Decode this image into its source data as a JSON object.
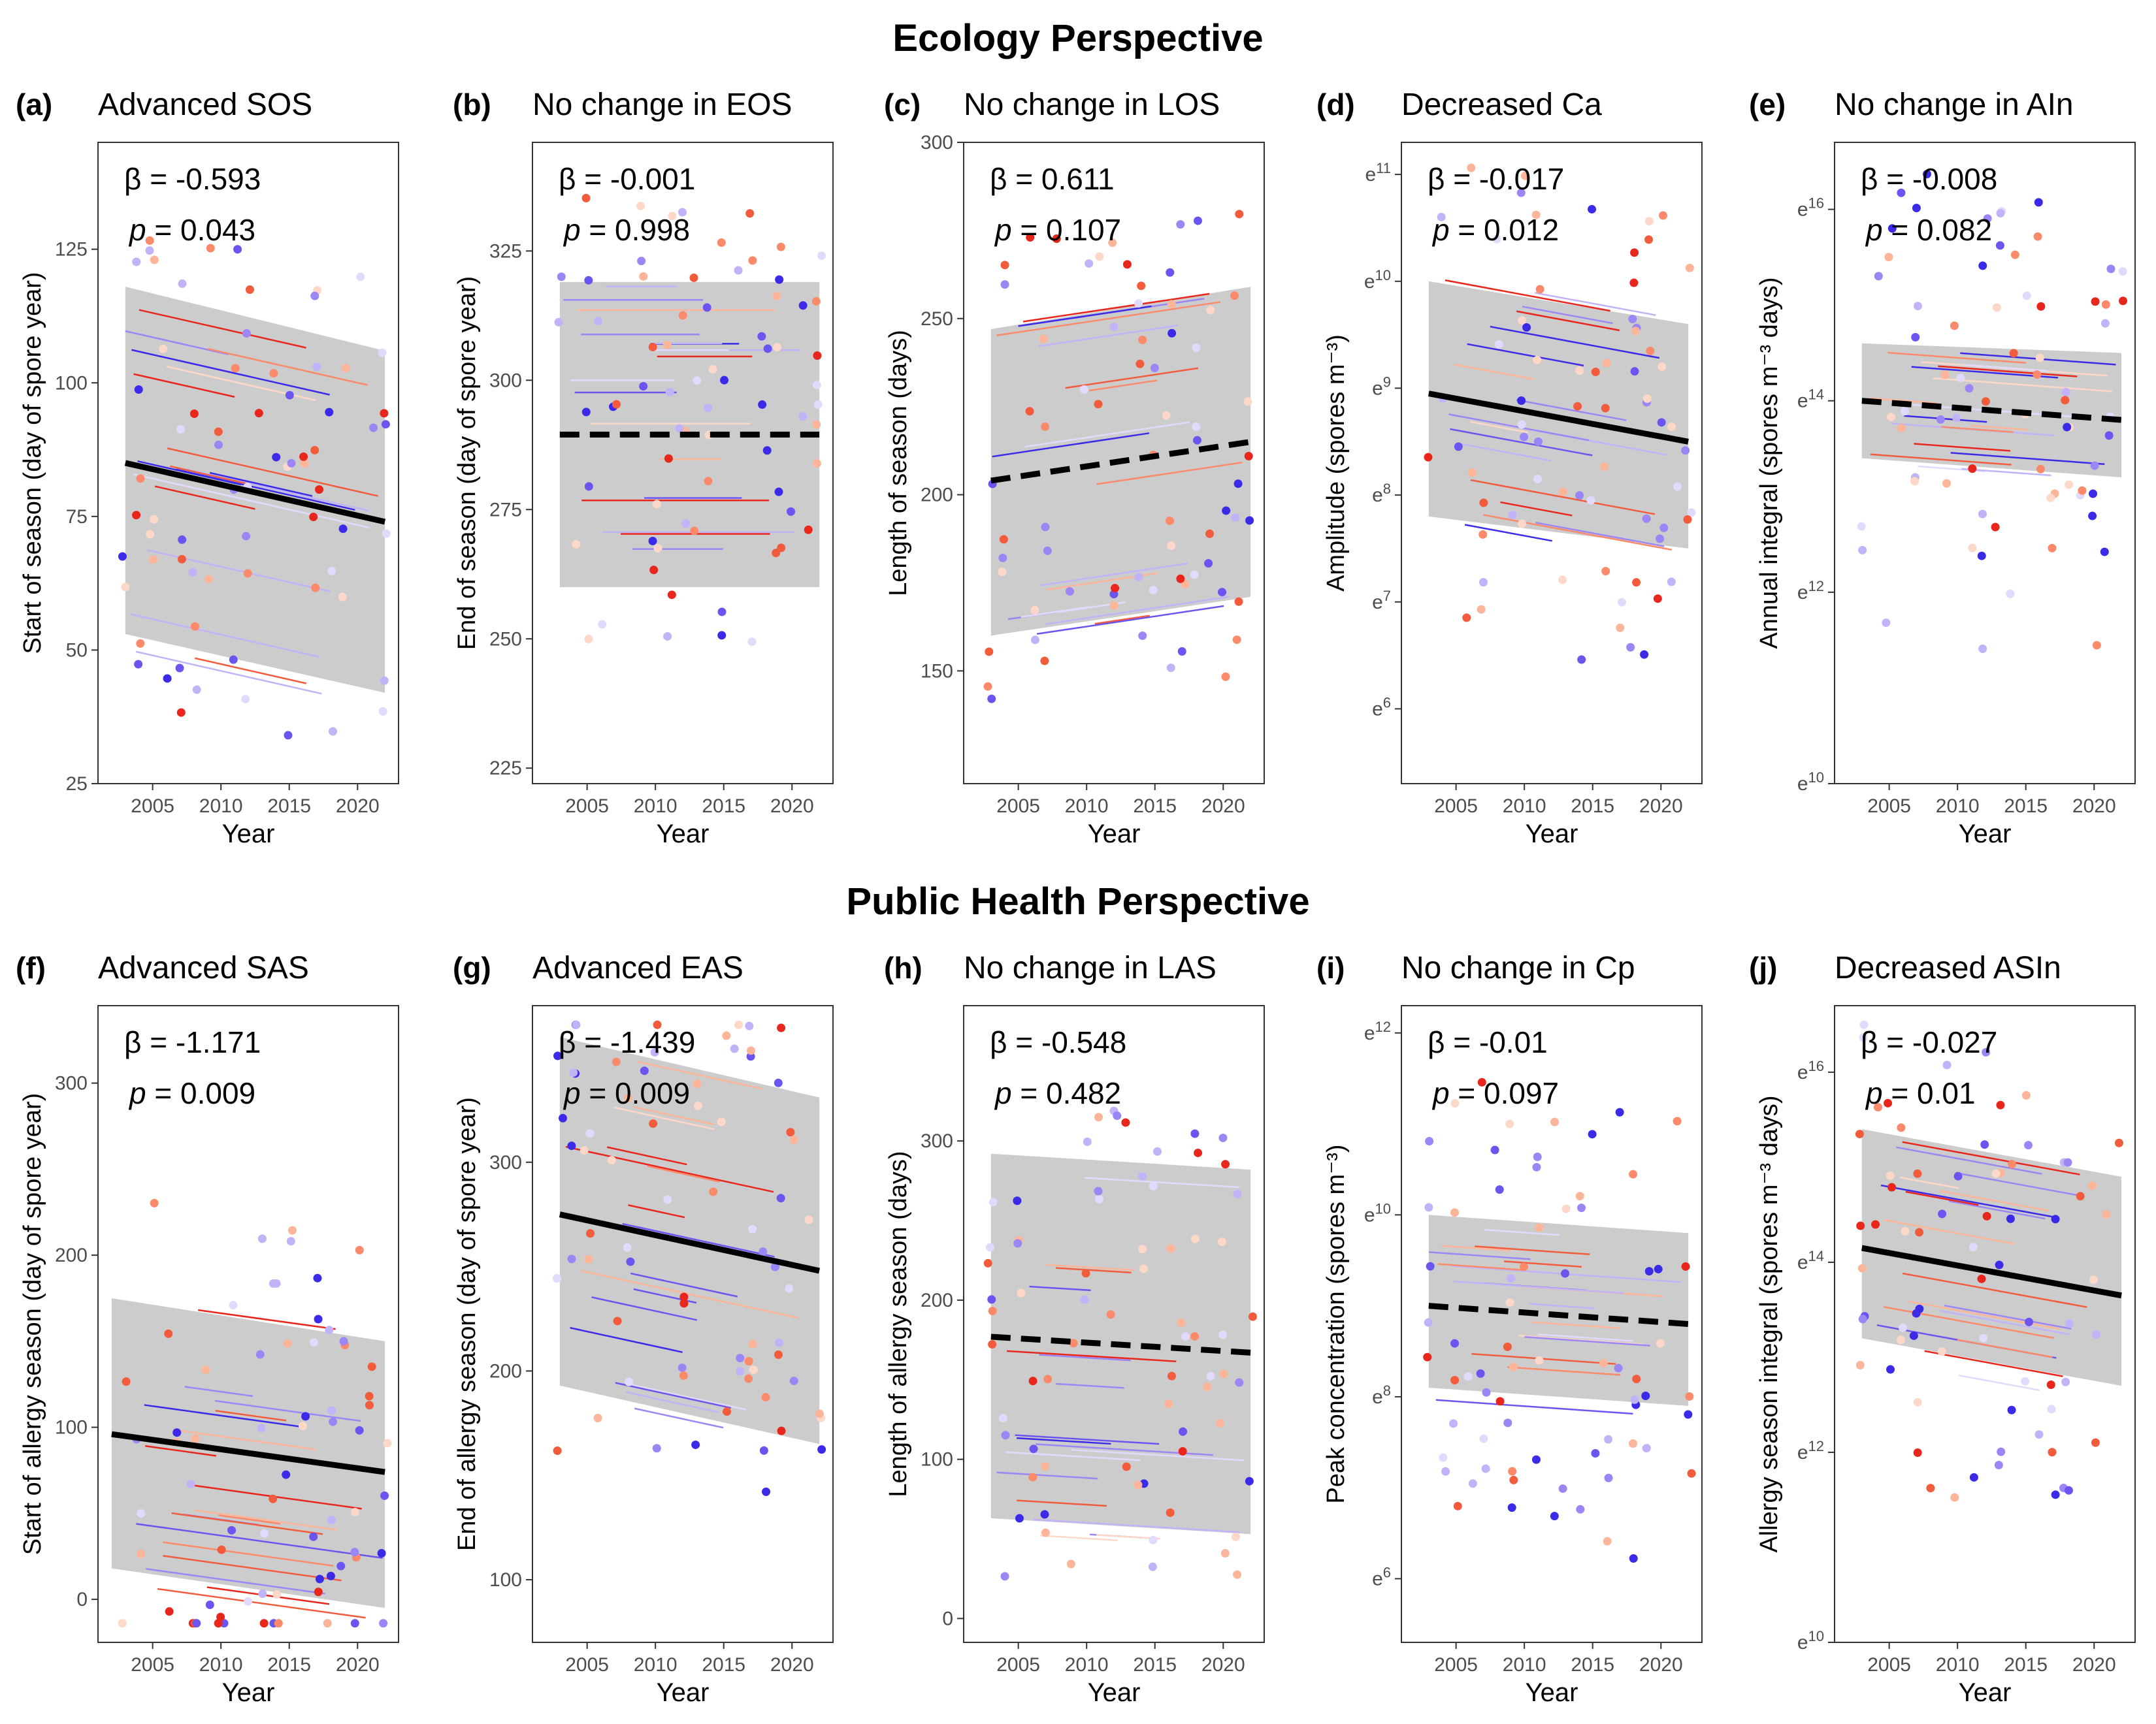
{
  "sections": [
    {
      "title": "Ecology Perspective"
    },
    {
      "title": "Public Health Perspective"
    }
  ],
  "chart_data": [
    {
      "type": "scatter",
      "panel": "(a)",
      "title": "Advanced SOS",
      "xlabel": "Year",
      "ylabel": "Start of season (day of spore year)",
      "beta": "-0.593",
      "p": "0.043",
      "xlim": [
        2001,
        2023
      ],
      "ylim": [
        25,
        145
      ],
      "yticks": [
        {
          "v": 25,
          "l": "25"
        },
        {
          "v": 50,
          "l": "50"
        },
        {
          "v": 75,
          "l": "75"
        },
        {
          "v": 100,
          "l": "100"
        },
        {
          "v": 125,
          "l": "125"
        }
      ],
      "trend": {
        "x0": 2003,
        "y0": 85,
        "x1": 2022,
        "y1": 74,
        "dashed": false
      },
      "band": {
        "lo0": 53,
        "hi0": 118,
        "lo1": 42,
        "hi1": 106
      }
    },
    {
      "type": "scatter",
      "panel": "(b)",
      "title": "No change in EOS",
      "xlabel": "Year",
      "ylabel": "End of season (day of spore year)",
      "beta": "-0.001",
      "p": "0.998",
      "xlim": [
        2001,
        2023
      ],
      "ylim": [
        222,
        346
      ],
      "yticks": [
        {
          "v": 225,
          "l": "225"
        },
        {
          "v": 250,
          "l": "250"
        },
        {
          "v": 275,
          "l": "275"
        },
        {
          "v": 300,
          "l": "300"
        },
        {
          "v": 325,
          "l": "325"
        }
      ],
      "trend": {
        "x0": 2003,
        "y0": 289.5,
        "x1": 2022,
        "y1": 289.5,
        "dashed": true
      },
      "band": {
        "lo0": 260,
        "hi0": 319,
        "lo1": 260,
        "hi1": 319
      }
    },
    {
      "type": "scatter",
      "panel": "(c)",
      "title": "No change in LOS",
      "xlabel": "Year",
      "ylabel": "Length of season (days)",
      "beta": "0.611",
      "p": "0.107",
      "xlim": [
        2001,
        2023
      ],
      "ylim": [
        118,
        300
      ],
      "yticks": [
        {
          "v": 150,
          "l": "150"
        },
        {
          "v": 200,
          "l": "200"
        },
        {
          "v": 250,
          "l": "250"
        },
        {
          "v": 300,
          "l": "300"
        }
      ],
      "trend": {
        "x0": 2003,
        "y0": 204,
        "x1": 2022,
        "y1": 215,
        "dashed": true
      },
      "band": {
        "lo0": 160,
        "hi0": 247,
        "lo1": 171,
        "hi1": 259
      }
    },
    {
      "type": "scatter",
      "panel": "(d)",
      "title": "Decreased Ca",
      "xlabel": "Year",
      "ylabel": "Amplitude (spores m⁻³)",
      "beta": "-0.017",
      "p": "0.012",
      "log_e": true,
      "xlim": [
        2001,
        2023
      ],
      "ylim": [
        5.3,
        11.3
      ],
      "yticks": [
        {
          "v": 6,
          "l": "e6"
        },
        {
          "v": 7,
          "l": "e7"
        },
        {
          "v": 8,
          "l": "e8"
        },
        {
          "v": 9,
          "l": "e9"
        },
        {
          "v": 10,
          "l": "e10"
        },
        {
          "v": 11,
          "l": "e11"
        }
      ],
      "trend": {
        "x0": 2003,
        "y0": 8.95,
        "x1": 2022,
        "y1": 8.5,
        "dashed": false
      },
      "band": {
        "lo0": 7.8,
        "hi0": 10.0,
        "lo1": 7.5,
        "hi1": 9.6
      }
    },
    {
      "type": "scatter",
      "panel": "(e)",
      "title": "No change in AIn",
      "xlabel": "Year",
      "ylabel": "Annual integral (spores m⁻³ days)",
      "beta": "-0.008",
      "p": "0.082",
      "log_e": true,
      "xlim": [
        2001,
        2023
      ],
      "ylim": [
        10,
        16.7
      ],
      "yticks": [
        {
          "v": 10,
          "l": "e10"
        },
        {
          "v": 12,
          "l": "e12"
        },
        {
          "v": 14,
          "l": "e14"
        },
        {
          "v": 16,
          "l": "e16"
        }
      ],
      "trend": {
        "x0": 2003,
        "y0": 14.0,
        "x1": 2022,
        "y1": 13.8,
        "dashed": true
      },
      "band": {
        "lo0": 13.4,
        "hi0": 14.6,
        "lo1": 13.2,
        "hi1": 14.5
      }
    },
    {
      "type": "scatter",
      "panel": "(f)",
      "title": "Advanced SAS",
      "xlabel": "Year",
      "ylabel": "Start of allergy season (day of spore year)",
      "beta": "-1.171",
      "p": "0.009",
      "xlim": [
        2001,
        2023
      ],
      "ylim": [
        -25,
        345
      ],
      "yticks": [
        {
          "v": 0,
          "l": "0"
        },
        {
          "v": 100,
          "l": "100"
        },
        {
          "v": 200,
          "l": "200"
        },
        {
          "v": 300,
          "l": "300"
        }
      ],
      "trend": {
        "x0": 2002,
        "y0": 96,
        "x1": 2022,
        "y1": 74,
        "dashed": false
      },
      "band": {
        "lo0": 18,
        "hi0": 175,
        "lo1": -5,
        "hi1": 150
      }
    },
    {
      "type": "scatter",
      "panel": "(g)",
      "title": "Advanced EAS",
      "xlabel": "Year",
      "ylabel": "End of allergy season (day of spore year)",
      "beta": "-1.439",
      "p": "0.009",
      "xlim": [
        2001,
        2023
      ],
      "ylim": [
        70,
        375
      ],
      "yticks": [
        {
          "v": 100,
          "l": "100"
        },
        {
          "v": 200,
          "l": "200"
        },
        {
          "v": 300,
          "l": "300"
        }
      ],
      "trend": {
        "x0": 2003,
        "y0": 275,
        "x1": 2022,
        "y1": 248,
        "dashed": false
      },
      "band": {
        "lo0": 193,
        "hi0": 360,
        "lo1": 165,
        "hi1": 331
      }
    },
    {
      "type": "scatter",
      "panel": "(h)",
      "title": "No change in LAS",
      "xlabel": "Year",
      "ylabel": "Length of allergy season (days)",
      "beta": "-0.548",
      "p": "0.482",
      "xlim": [
        2001,
        2023
      ],
      "ylim": [
        -15,
        385
      ],
      "yticks": [
        {
          "v": 0,
          "l": "0"
        },
        {
          "v": 100,
          "l": "100"
        },
        {
          "v": 200,
          "l": "200"
        },
        {
          "v": 300,
          "l": "300"
        }
      ],
      "trend": {
        "x0": 2003,
        "y0": 177,
        "x1": 2022,
        "y1": 167,
        "dashed": true
      },
      "band": {
        "lo0": 63,
        "hi0": 292,
        "lo1": 53,
        "hi1": 282
      }
    },
    {
      "type": "scatter",
      "panel": "(i)",
      "title": "No change in Cp",
      "xlabel": "Year",
      "ylabel": "Peak concentration (spores m⁻³)",
      "beta": "-0.01",
      "p": "0.097",
      "log_e": true,
      "xlim": [
        2001,
        2023
      ],
      "ylim": [
        5.3,
        12.3
      ],
      "yticks": [
        {
          "v": 6,
          "l": "e6"
        },
        {
          "v": 8,
          "l": "e8"
        },
        {
          "v": 10,
          "l": "e10"
        },
        {
          "v": 12,
          "l": "e12"
        }
      ],
      "trend": {
        "x0": 2003,
        "y0": 9.0,
        "x1": 2022,
        "y1": 8.8,
        "dashed": true
      },
      "band": {
        "lo0": 8.1,
        "hi0": 10.0,
        "lo1": 7.9,
        "hi1": 9.8
      }
    },
    {
      "type": "scatter",
      "panel": "(j)",
      "title": "Decreased ASIn",
      "xlabel": "Year",
      "ylabel": "Allergy season integral (spores m⁻³ days)",
      "beta": "-0.027",
      "p": "0.01",
      "log_e": true,
      "xlim": [
        2001,
        2023
      ],
      "ylim": [
        10,
        16.7
      ],
      "yticks": [
        {
          "v": 10,
          "l": "e10"
        },
        {
          "v": 12,
          "l": "e12"
        },
        {
          "v": 14,
          "l": "e14"
        },
        {
          "v": 16,
          "l": "e16"
        }
      ],
      "trend": {
        "x0": 2003,
        "y0": 14.15,
        "x1": 2022,
        "y1": 13.65,
        "dashed": false
      },
      "band": {
        "lo0": 13.2,
        "hi0": 15.4,
        "lo1": 12.7,
        "hi1": 14.9
      }
    }
  ],
  "xticks": [
    2005,
    2010,
    2015,
    2020
  ],
  "colors": {
    "band": "#cccccc",
    "reds": [
      "#e8261c",
      "#f25c3c",
      "#fb8a6a",
      "#fcb598",
      "#fdd8c8"
    ],
    "blues": [
      "#3b2ae8",
      "#6a55f0",
      "#9c86f5",
      "#c2b3f9",
      "#e2dafd"
    ]
  }
}
